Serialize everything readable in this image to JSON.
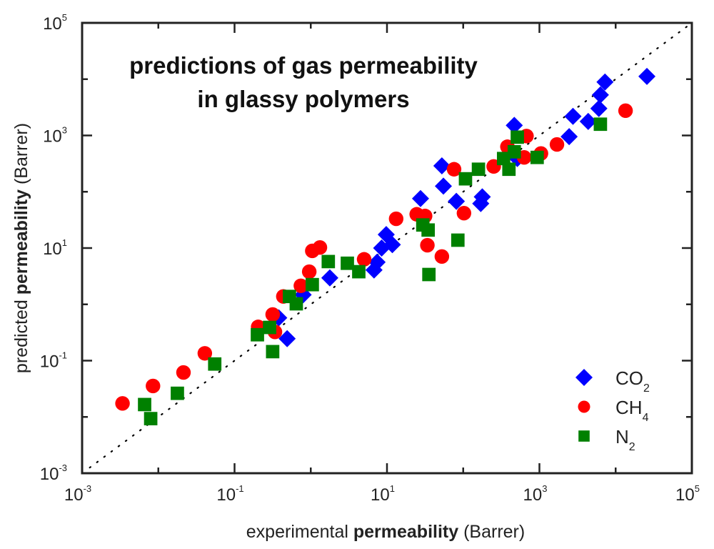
{
  "chart_data": {
    "type": "scatter",
    "title_lines": [
      "predictions of gas permeability",
      "in glassy polymers"
    ],
    "xlabel": {
      "prefix": "experimental ",
      "bold": "permeability",
      "suffix": " (Barrer)"
    },
    "ylabel": {
      "prefix": "predicted ",
      "bold": "permeability",
      "suffix": " (Barrer)"
    },
    "xscale": "log",
    "yscale": "log",
    "xlim": [
      0.001,
      100000
    ],
    "ylim": [
      0.001,
      100000
    ],
    "x_ticks": [
      {
        "base": "10",
        "exp": "-3"
      },
      {
        "base": "10",
        "exp": "-1"
      },
      {
        "base": "10",
        "exp": "1"
      },
      {
        "base": "10",
        "exp": "3"
      },
      {
        "base": "10",
        "exp": "5"
      }
    ],
    "y_ticks": [
      {
        "base": "10",
        "exp": "-3"
      },
      {
        "base": "10",
        "exp": "-1"
      },
      {
        "base": "10",
        "exp": "1"
      },
      {
        "base": "10",
        "exp": "3"
      },
      {
        "base": "10",
        "exp": "5"
      }
    ],
    "grid": false,
    "reference_line": {
      "style": "dotted",
      "relation": "y = x",
      "color": "#000000"
    },
    "legend_position": "bottom-right",
    "series": [
      {
        "name": "CO2",
        "label_main": "CO",
        "label_sub": "2",
        "marker": "diamond",
        "color": "#0000ff",
        "points_log10": [
          [
            4.41,
            4.05
          ],
          [
            3.86,
            3.95
          ],
          [
            3.8,
            3.72
          ],
          [
            3.78,
            3.48
          ],
          [
            3.44,
            3.34
          ],
          [
            3.64,
            3.25
          ],
          [
            3.39,
            2.98
          ],
          [
            2.67,
            3.18
          ],
          [
            2.71,
            2.59
          ],
          [
            2.23,
            1.79
          ],
          [
            2.25,
            1.91
          ],
          [
            1.91,
            1.83
          ],
          [
            1.74,
            2.1
          ],
          [
            1.72,
            2.46
          ],
          [
            1.44,
            1.88
          ],
          [
            0.99,
            1.24
          ],
          [
            1.07,
            1.06
          ],
          [
            0.93,
            1.0
          ],
          [
            0.87,
            0.75
          ],
          [
            0.83,
            0.61
          ],
          [
            0.25,
            0.47
          ],
          [
            -0.1,
            0.17
          ],
          [
            -0.31,
            -0.61
          ],
          [
            -0.42,
            -0.24
          ]
        ]
      },
      {
        "name": "CH4",
        "label_main": "CH",
        "label_sub": "4",
        "marker": "circle",
        "color": "#ff0000",
        "points_log10": [
          [
            4.13,
            3.44
          ],
          [
            3.23,
            2.84
          ],
          [
            3.02,
            2.68
          ],
          [
            2.83,
            2.99
          ],
          [
            2.58,
            2.8
          ],
          [
            2.8,
            2.61
          ],
          [
            2.4,
            2.45
          ],
          [
            1.88,
            2.4
          ],
          [
            2.01,
            1.62
          ],
          [
            1.5,
            1.57
          ],
          [
            1.39,
            1.6
          ],
          [
            1.12,
            1.52
          ],
          [
            1.53,
            1.05
          ],
          [
            1.72,
            0.85
          ],
          [
            0.7,
            0.8
          ],
          [
            0.12,
            1.01
          ],
          [
            0.02,
            0.95
          ],
          [
            -0.02,
            0.58
          ],
          [
            -0.13,
            0.33
          ],
          [
            -0.36,
            0.14
          ],
          [
            -0.5,
            -0.18
          ],
          [
            -0.69,
            -0.4
          ],
          [
            -0.47,
            -0.49
          ],
          [
            -1.39,
            -0.87
          ],
          [
            -1.67,
            -1.21
          ],
          [
            -2.07,
            -1.45
          ],
          [
            -2.47,
            -1.76
          ]
        ]
      },
      {
        "name": "N2",
        "label_main": "N",
        "label_sub": "2",
        "marker": "square",
        "color": "#008000",
        "points_log10": [
          [
            3.8,
            3.2
          ],
          [
            2.97,
            2.61
          ],
          [
            2.71,
            2.97
          ],
          [
            2.67,
            2.71
          ],
          [
            2.53,
            2.59
          ],
          [
            2.6,
            2.4
          ],
          [
            2.2,
            2.4
          ],
          [
            2.03,
            2.23
          ],
          [
            1.47,
            1.41
          ],
          [
            1.54,
            1.32
          ],
          [
            1.93,
            1.14
          ],
          [
            1.55,
            0.53
          ],
          [
            0.63,
            0.58
          ],
          [
            0.48,
            0.73
          ],
          [
            0.23,
            0.76
          ],
          [
            0.02,
            0.35
          ],
          [
            -0.19,
            0.01
          ],
          [
            -0.28,
            0.14
          ],
          [
            -0.54,
            -0.41
          ],
          [
            -0.7,
            -0.54
          ],
          [
            -0.5,
            -0.84
          ],
          [
            -1.26,
            -1.06
          ],
          [
            -1.75,
            -1.58
          ],
          [
            -2.18,
            -1.78
          ],
          [
            -2.1,
            -2.03
          ]
        ]
      }
    ]
  }
}
